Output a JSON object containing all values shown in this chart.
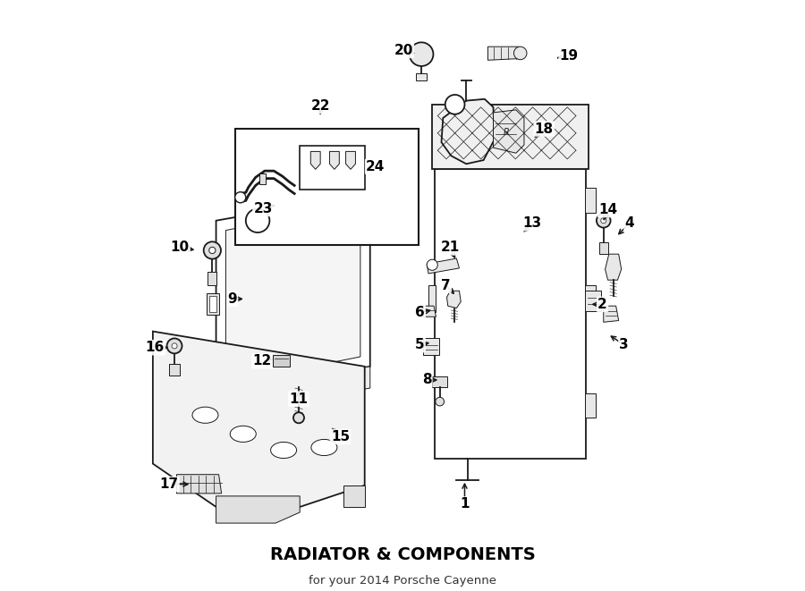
{
  "title": "RADIATOR & COMPONENTS",
  "subtitle": "for your 2014 Porsche Cayenne",
  "bg": "#ffffff",
  "lc": "#1a1a1a",
  "label_color": "#000000",
  "figsize": [
    9.0,
    6.61
  ],
  "dpi": 100,
  "label_fontsize": 11,
  "label_bold": true,
  "arrow_lw": 1.1,
  "part_labels": {
    "1": [
      0.615,
      0.915,
      0.615,
      0.87
    ],
    "2": [
      0.87,
      0.545,
      0.845,
      0.545
    ],
    "3": [
      0.91,
      0.62,
      0.88,
      0.6
    ],
    "4": [
      0.92,
      0.395,
      0.895,
      0.42
    ],
    "5": [
      0.532,
      0.62,
      0.555,
      0.615
    ],
    "6": [
      0.532,
      0.56,
      0.558,
      0.555
    ],
    "7": [
      0.58,
      0.51,
      0.6,
      0.53
    ],
    "8": [
      0.545,
      0.685,
      0.57,
      0.685
    ],
    "9": [
      0.185,
      0.535,
      0.21,
      0.535
    ],
    "10": [
      0.088,
      0.44,
      0.12,
      0.445
    ],
    "11": [
      0.308,
      0.72,
      0.308,
      0.7
    ],
    "12": [
      0.24,
      0.65,
      0.265,
      0.645
    ],
    "13": [
      0.74,
      0.395,
      0.72,
      0.415
    ],
    "14": [
      0.88,
      0.37,
      0.87,
      0.395
    ],
    "15": [
      0.385,
      0.79,
      0.365,
      0.77
    ],
    "16": [
      0.042,
      0.625,
      0.072,
      0.625
    ],
    "17": [
      0.068,
      0.878,
      0.11,
      0.878
    ],
    "18": [
      0.762,
      0.22,
      0.74,
      0.24
    ],
    "19": [
      0.808,
      0.085,
      0.78,
      0.09
    ],
    "20": [
      0.502,
      0.075,
      0.528,
      0.082
    ],
    "21": [
      0.588,
      0.44,
      0.6,
      0.465
    ],
    "22": [
      0.348,
      0.178,
      0.348,
      0.2
    ],
    "23": [
      0.242,
      0.368,
      0.268,
      0.36
    ],
    "24": [
      0.45,
      0.29,
      0.428,
      0.295
    ]
  }
}
